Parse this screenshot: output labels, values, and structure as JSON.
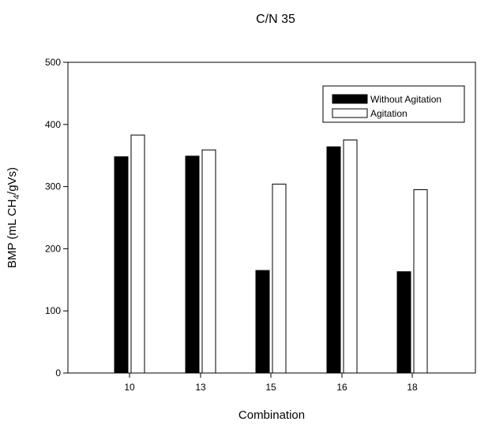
{
  "chart_data": {
    "type": "bar",
    "title": "C/N 35",
    "xlabel": "Combination",
    "ylabel": {
      "main": "BMP (mL CH",
      "subscript": "4",
      "rest": "/gVs)"
    },
    "categories": [
      "10",
      "13",
      "15",
      "16",
      "18"
    ],
    "series": [
      {
        "name": "Without Agitation",
        "values": [
          348,
          349,
          165,
          364,
          163
        ],
        "color": "#000000",
        "outline": "#000000"
      },
      {
        "name": "Agitation",
        "values": [
          383,
          359,
          304,
          375,
          295
        ],
        "color": "#ffffff",
        "outline": "#000000"
      }
    ],
    "ylim": [
      0,
      500
    ],
    "yticks": [
      0,
      100,
      200,
      300,
      400,
      500
    ],
    "grid": false,
    "legend_position": "top-right"
  }
}
